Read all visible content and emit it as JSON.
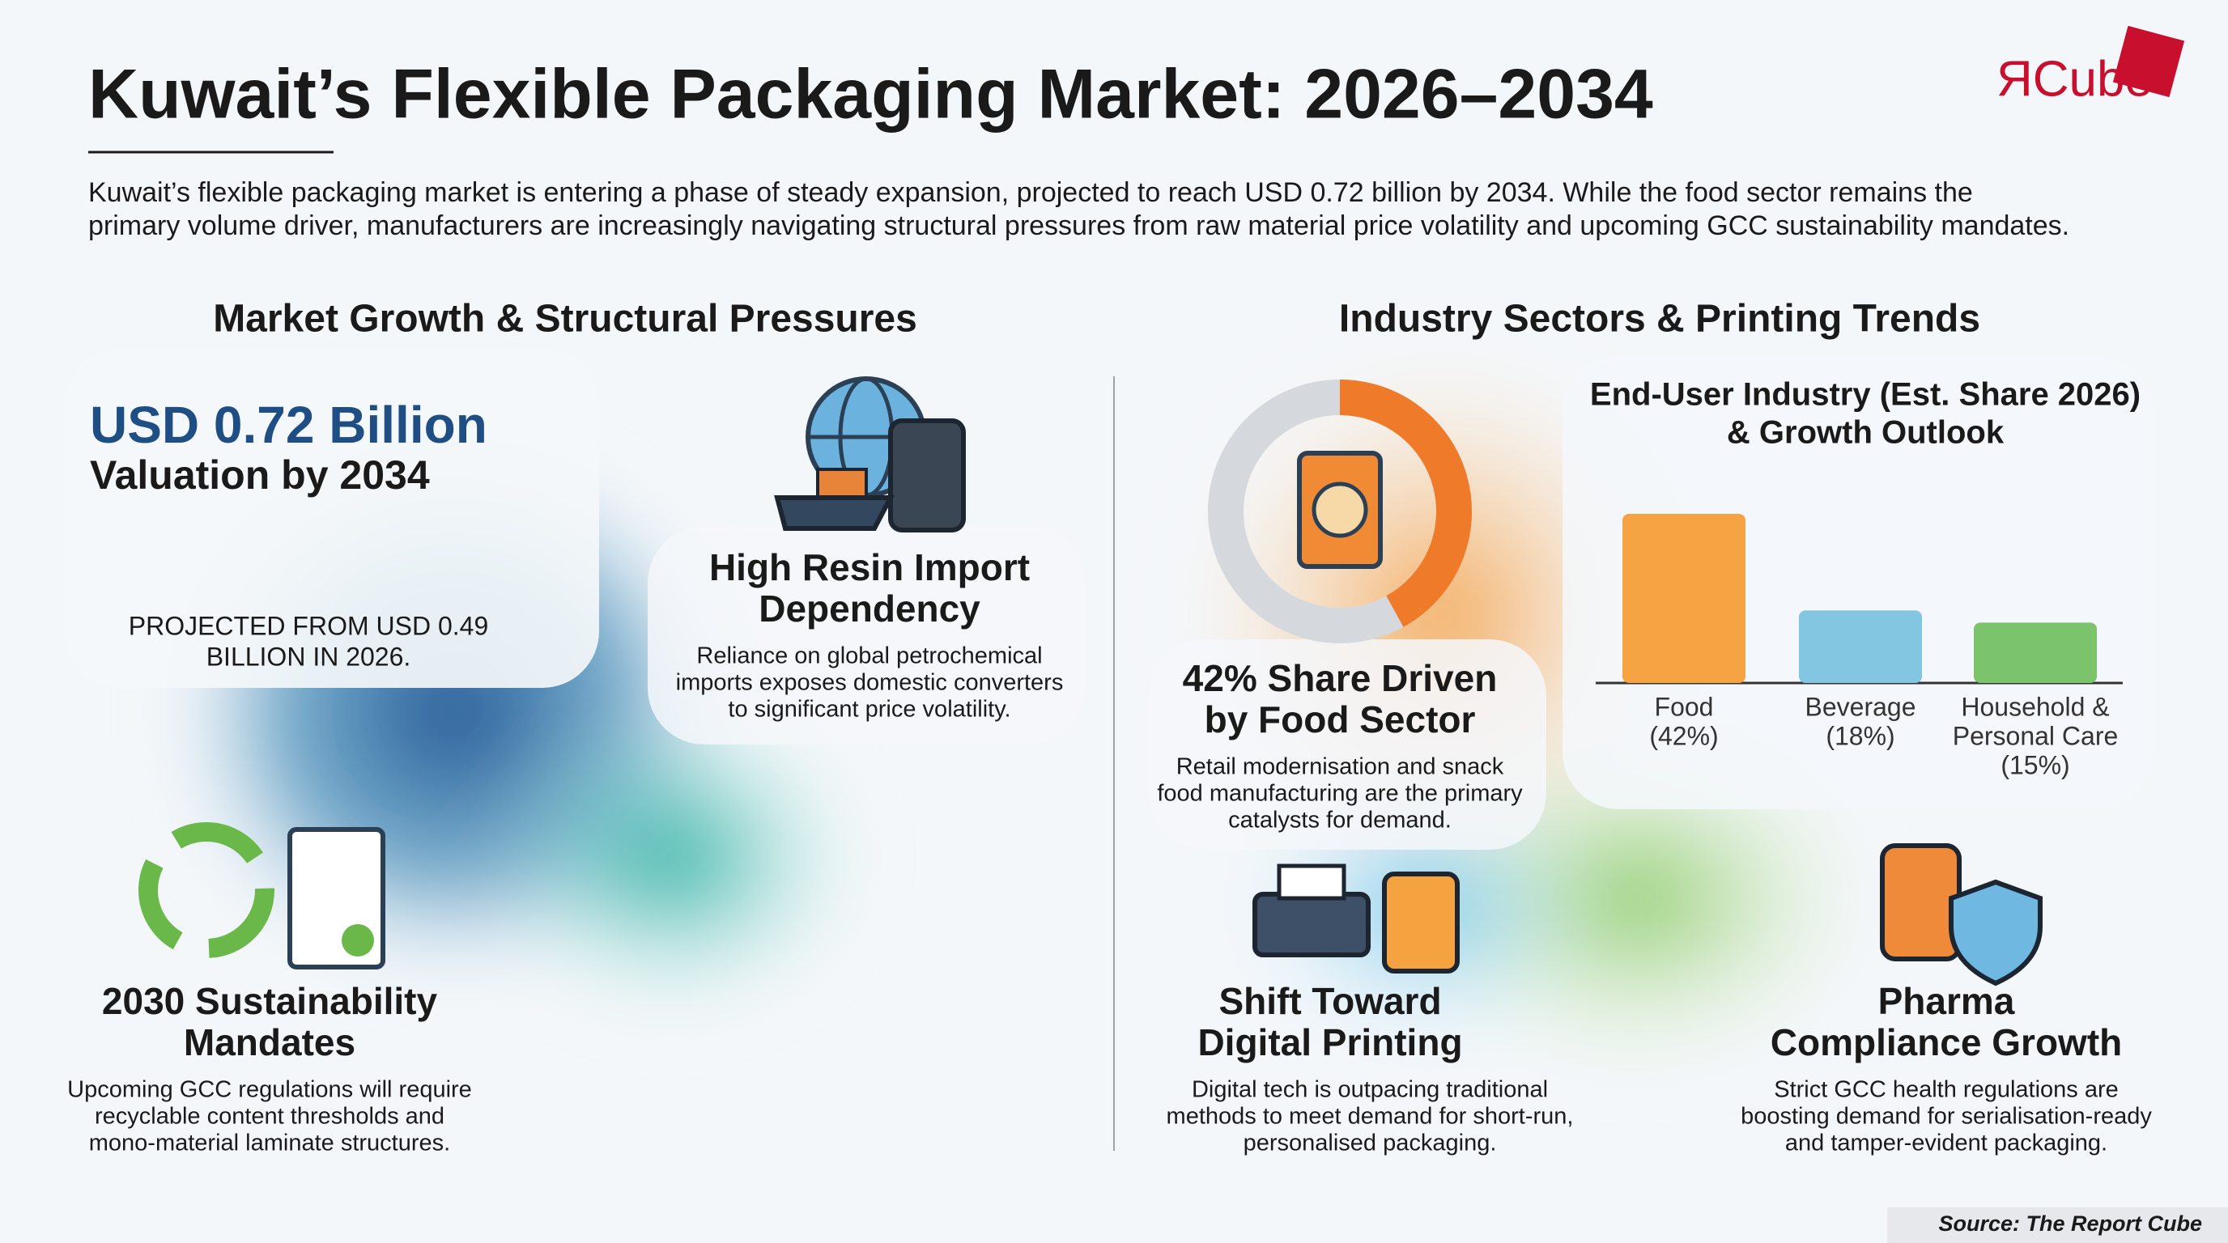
{
  "header": {
    "title": "Kuwait’s Flexible Packaging Market: 2026–2034",
    "logo": "ЯCube",
    "intro": [
      "Kuwait’s flexible packaging market is entering a phase of steady expansion, projected to reach USD 0.72 billion by 2034. While the food sector remains the",
      "primary volume driver, manufacturers are increasingly navigating structural pressures from raw material price volatility and upcoming GCC sustainability mandates."
    ]
  },
  "left": {
    "heading": "Market Growth & Structural Pressures",
    "valuation": {
      "amount": "USD 0.72 Billion",
      "caption": "Valuation by 2034"
    },
    "projection": [
      "PROJECTED FROM USD 0.49",
      "BILLION IN 2026."
    ],
    "resin": {
      "title": [
        "High Resin Import",
        "Dependency"
      ],
      "text": [
        "Reliance on global petrochemical",
        "imports exposes domestic converters",
        "to significant price volatility."
      ]
    },
    "sustainability": {
      "title": [
        "2030 Sustainability",
        "Mandates"
      ],
      "text": [
        "Upcoming GCC regulations will require",
        "recyclable content thresholds and",
        "mono-material laminate structures."
      ]
    }
  },
  "right": {
    "heading": "Industry Sectors & Printing Trends",
    "food": {
      "title": [
        "42% Share Driven",
        "by Food Sector"
      ],
      "text": [
        "Retail modernisation and snack",
        "food manufacturing are the primary",
        "catalysts for demand."
      ]
    },
    "digital": {
      "title": [
        "Shift Toward",
        "Digital Printing"
      ],
      "text": [
        "Digital tech is outpacing traditional",
        "methods to meet demand for short-run,",
        "personalised packaging."
      ]
    },
    "pharma": {
      "title": [
        "Pharma",
        "Compliance Growth"
      ],
      "text": [
        "Strict GCC health regulations are",
        "boosting demand for serialisation-ready",
        "and tamper-evident packaging."
      ]
    }
  },
  "chart_data": {
    "type": "bar",
    "title": [
      "End-User Industry (Est. Share 2026)",
      "& Growth Outlook"
    ],
    "categories": [
      [
        "Food",
        "(42%)"
      ],
      [
        "Beverage",
        "(18%)"
      ],
      [
        "Household &",
        "Personal Care",
        "(15%)"
      ]
    ],
    "values": [
      42,
      18,
      15
    ],
    "colors": [
      "#f6a443",
      "#82c6e2",
      "#7cc46b"
    ]
  },
  "source": "Source: The Report Cube"
}
